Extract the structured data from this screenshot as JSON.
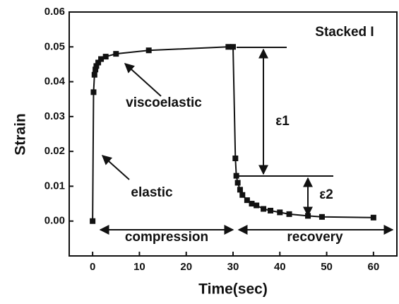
{
  "chart_data": {
    "type": "line",
    "title": "Stacked I",
    "xlabel": "Time(sec)",
    "ylabel": "Strain",
    "annotations": [
      "viscoelastic",
      "elastic",
      "compression",
      "recovery",
      "ε1",
      "ε2"
    ],
    "x": [
      0,
      0.2,
      0.4,
      0.6,
      0.8,
      1.2,
      1.8,
      2.8,
      5,
      12,
      29,
      30,
      30.5,
      30.7,
      31,
      31.5,
      32,
      33,
      34,
      35,
      36.5,
      38,
      40,
      42,
      46,
      49,
      60
    ],
    "series": [
      {
        "name": "Strain",
        "color": "#111111",
        "values": [
          0,
          0.037,
          0.042,
          0.0435,
          0.0445,
          0.0455,
          0.0465,
          0.0472,
          0.048,
          0.049,
          0.05,
          0.05,
          0.018,
          0.013,
          0.011,
          0.009,
          0.0075,
          0.006,
          0.005,
          0.0045,
          0.0035,
          0.003,
          0.0025,
          0.002,
          0.0015,
          0.0012,
          0.001
        ]
      }
    ],
    "xlim": [
      -5,
      65
    ],
    "xticks": [
      0,
      10,
      20,
      30,
      40,
      50,
      60
    ],
    "ylim": [
      -0.01,
      0.06
    ],
    "yticks": [
      {
        "value": 0,
        "label": "0.00"
      },
      0.01,
      0.02,
      0.03,
      0.04,
      0.05,
      0.06
    ],
    "marker": "square",
    "grid": false
  }
}
